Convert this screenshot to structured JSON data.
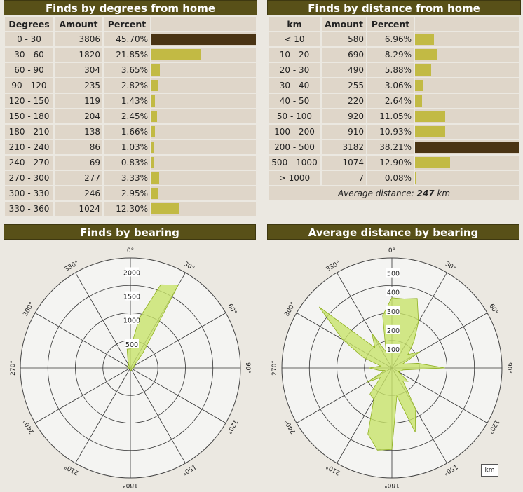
{
  "deg_table": {
    "title": "Finds by degrees from home",
    "headers": [
      "Degrees",
      "Amount",
      "Percent"
    ],
    "rows": [
      {
        "range": "0 - 30",
        "amount": "3806",
        "percent": "45.70%",
        "value": 3806
      },
      {
        "range": "30 - 60",
        "amount": "1820",
        "percent": "21.85%",
        "value": 1820
      },
      {
        "range": "60 - 90",
        "amount": "304",
        "percent": "3.65%",
        "value": 304
      },
      {
        "range": "90 - 120",
        "amount": "235",
        "percent": "2.82%",
        "value": 235
      },
      {
        "range": "120 - 150",
        "amount": "119",
        "percent": "1.43%",
        "value": 119
      },
      {
        "range": "150 - 180",
        "amount": "204",
        "percent": "2.45%",
        "value": 204
      },
      {
        "range": "180 - 210",
        "amount": "138",
        "percent": "1.66%",
        "value": 138
      },
      {
        "range": "210 - 240",
        "amount": "86",
        "percent": "1.03%",
        "value": 86
      },
      {
        "range": "240 - 270",
        "amount": "69",
        "percent": "0.83%",
        "value": 69
      },
      {
        "range": "270 - 300",
        "amount": "277",
        "percent": "3.33%",
        "value": 277
      },
      {
        "range": "300 - 330",
        "amount": "246",
        "percent": "2.95%",
        "value": 246
      },
      {
        "range": "330 - 360",
        "amount": "1024",
        "percent": "12.30%",
        "value": 1024
      }
    ]
  },
  "dist_table": {
    "title": "Finds by distance from home",
    "headers": [
      "km",
      "Amount",
      "Percent"
    ],
    "rows": [
      {
        "range": "< 10",
        "amount": "580",
        "percent": "6.96%",
        "value": 580
      },
      {
        "range": "10 - 20",
        "amount": "690",
        "percent": "8.29%",
        "value": 690
      },
      {
        "range": "20 - 30",
        "amount": "490",
        "percent": "5.88%",
        "value": 490
      },
      {
        "range": "30 - 40",
        "amount": "255",
        "percent": "3.06%",
        "value": 255
      },
      {
        "range": "40 - 50",
        "amount": "220",
        "percent": "2.64%",
        "value": 220
      },
      {
        "range": "50 - 100",
        "amount": "920",
        "percent": "11.05%",
        "value": 920
      },
      {
        "range": "100 - 200",
        "amount": "910",
        "percent": "10.93%",
        "value": 910
      },
      {
        "range": "200 - 500",
        "amount": "3182",
        "percent": "38.21%",
        "value": 3182
      },
      {
        "range": "500 - 1000",
        "amount": "1074",
        "percent": "12.90%",
        "value": 1074
      },
      {
        "range": "> 1000",
        "amount": "7",
        "percent": "0.08%",
        "value": 7
      }
    ],
    "avg_label": "Average distance:",
    "avg_value": "247",
    "avg_unit": "km"
  },
  "chart_data": [
    {
      "type": "polar-area",
      "title": "Finds by bearing",
      "rlim": [
        0,
        2300
      ],
      "ring_labels": [
        500,
        1000,
        1500,
        2000
      ],
      "angle_labels": [
        "0°",
        "30°",
        "60°",
        "90°",
        "120°",
        "150°",
        "180°",
        "210°",
        "240°",
        "270°",
        "300°",
        "330°"
      ],
      "bearings": [
        0,
        10,
        20,
        30,
        40,
        50,
        60,
        70,
        80,
        90,
        100,
        110,
        120,
        130,
        140,
        150,
        160,
        170,
        180,
        190,
        200,
        210,
        220,
        230,
        240,
        250,
        260,
        270,
        280,
        290,
        300,
        310,
        320,
        330,
        340,
        350
      ],
      "values": [
        400,
        1050,
        1850,
        2000,
        400,
        130,
        90,
        100,
        70,
        60,
        50,
        40,
        35,
        30,
        35,
        45,
        60,
        50,
        45,
        40,
        35,
        30,
        25,
        20,
        20,
        25,
        35,
        30,
        40,
        80,
        60,
        70,
        80,
        60,
        150,
        400
      ]
    },
    {
      "type": "polar-area",
      "title": "Average distance by bearing",
      "rlim": [
        0,
        580
      ],
      "ring_labels": [
        100,
        200,
        300,
        400,
        500
      ],
      "angle_labels": [
        "0°",
        "30°",
        "60°",
        "90°",
        "120°",
        "150°",
        "180°",
        "210°",
        "240°",
        "270°",
        "300°",
        "330°"
      ],
      "unit_label": "km",
      "bearings": [
        0,
        10,
        20,
        30,
        40,
        50,
        60,
        70,
        80,
        90,
        100,
        110,
        120,
        130,
        140,
        150,
        160,
        170,
        180,
        190,
        200,
        210,
        220,
        230,
        240,
        250,
        260,
        270,
        280,
        290,
        300,
        310,
        320,
        330,
        340,
        350
      ],
      "values": [
        370,
        370,
        390,
        280,
        180,
        110,
        170,
        60,
        140,
        280,
        60,
        50,
        40,
        110,
        90,
        250,
        360,
        150,
        430,
        440,
        370,
        190,
        180,
        80,
        150,
        40,
        70,
        120,
        60,
        160,
        300,
        500,
        140,
        210,
        90,
        280
      ]
    }
  ],
  "colors": {
    "header_bg": "#585018",
    "bar": "#c2ba44",
    "bar_max": "#4a3414",
    "polar_fill": "#c8e46a",
    "polar_stroke": "#8fb020"
  }
}
